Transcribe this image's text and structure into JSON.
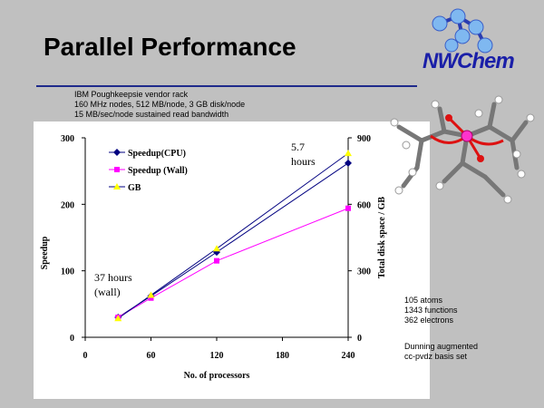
{
  "slide": {
    "title": "Parallel Performance",
    "logo_text": "NWChem",
    "info_lines": [
      "IBM Poughkeepsie vendor rack",
      "160 MHz nodes, 512 MB/node, 3 GB disk/node",
      "15 MB/sec/node sustained read bandwidth"
    ],
    "stats_lines": [
      "105 atoms",
      "1343 functions",
      "362 electrons"
    ],
    "basis_lines": [
      "Dunning augmented",
      "cc-pvdz basis set"
    ],
    "colors": {
      "background": "#c0c0c0",
      "rule": "#1f2a8c",
      "logo": "#1a1fa8"
    }
  },
  "chart_data": {
    "type": "line",
    "xlabel": "No. of processors",
    "ylabel": "Speedup",
    "y2label": "Total disk space / GB",
    "x_ticks": [
      "0",
      "60",
      "120",
      "180",
      "240"
    ],
    "y_ticks": [
      "0",
      "100",
      "200",
      "300"
    ],
    "y2_ticks": [
      "0",
      "300",
      "600",
      "900"
    ],
    "xlim": [
      0,
      240
    ],
    "ylim": [
      0,
      300
    ],
    "y2lim": [
      0,
      900
    ],
    "legend_position": "top-left",
    "series": [
      {
        "name": "Speedup(CPU)",
        "axis": "left",
        "color": "#000080",
        "marker": "diamond",
        "x": [
          30,
          60,
          120,
          240
        ],
        "y": [
          30,
          62,
          128,
          262
        ]
      },
      {
        "name": "Speedup (Wall)",
        "axis": "left",
        "color": "#ff00ff",
        "marker": "square",
        "x": [
          30,
          60,
          120,
          240
        ],
        "y": [
          30,
          59,
          115,
          194
        ]
      },
      {
        "name": "GB",
        "axis": "right",
        "color": "#ffff00",
        "marker": "triangle",
        "x": [
          30,
          60,
          120,
          240
        ],
        "y": [
          85,
          190,
          400,
          830
        ]
      }
    ],
    "annotations": [
      {
        "text": "5.7 hours",
        "lines": [
          "5.7",
          "hours"
        ]
      },
      {
        "text": "37 hours (wall)",
        "lines": [
          "37 hours",
          "(wall)"
        ]
      }
    ]
  }
}
